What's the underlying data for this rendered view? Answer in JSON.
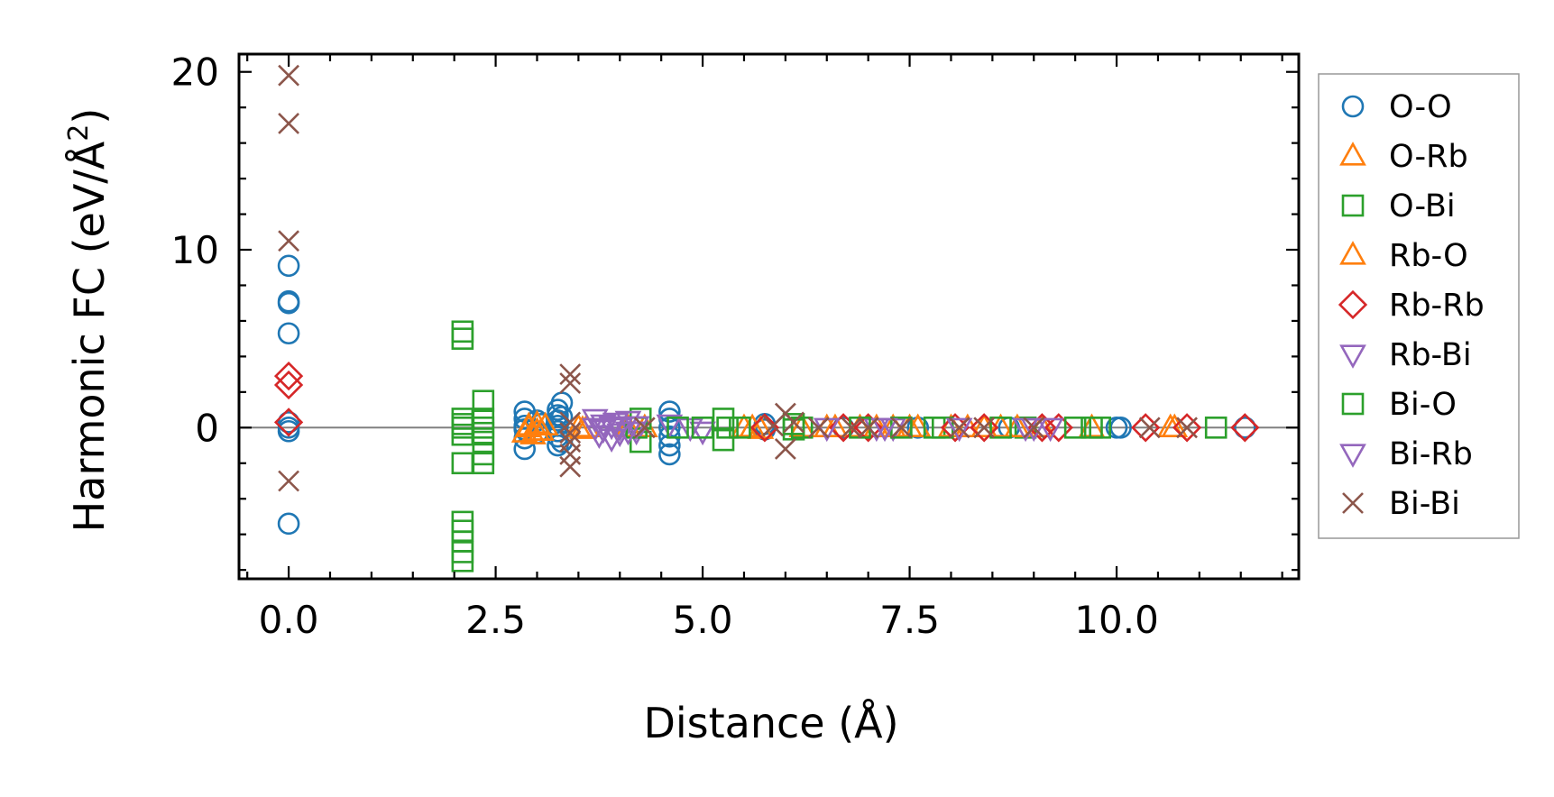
{
  "chart_data": {
    "type": "scatter",
    "title": "",
    "xlabel": "Distance (Å)",
    "ylabel_prefix": "Harmonic FC (eV/Å",
    "ylabel_sup": "2",
    "ylabel_suffix": ")",
    "xlim": [
      -0.6,
      12.2
    ],
    "ylim": [
      -8.5,
      21.0
    ],
    "xticks": [
      {
        "value": 0.0,
        "label": "0.0"
      },
      {
        "value": 2.5,
        "label": "2.5"
      },
      {
        "value": 5.0,
        "label": "5.0"
      },
      {
        "value": 7.5,
        "label": "7.5"
      },
      {
        "value": 10.0,
        "label": "10.0"
      }
    ],
    "yticks": [
      {
        "value": 0,
        "label": "0"
      },
      {
        "value": 10,
        "label": "10"
      },
      {
        "value": 20,
        "label": "20"
      }
    ],
    "x_minor_step": 0.5,
    "y_minor_step": 2,
    "zero_line": true,
    "grid": false,
    "legend_position": "right",
    "series": [
      {
        "name": "O-O",
        "marker": "circle",
        "color": "#1f77b4",
        "points": [
          [
            0,
            9.1
          ],
          [
            0,
            7.1
          ],
          [
            0,
            7.0
          ],
          [
            0,
            5.3
          ],
          [
            0,
            0.3
          ],
          [
            0,
            0.0
          ],
          [
            0,
            -0.2
          ],
          [
            0,
            -5.4
          ],
          [
            2.85,
            0.9
          ],
          [
            2.85,
            0.5
          ],
          [
            2.85,
            0.1
          ],
          [
            2.85,
            -0.1
          ],
          [
            2.85,
            -0.6
          ],
          [
            2.85,
            -1.2
          ],
          [
            3.0,
            0.4
          ],
          [
            3.0,
            -0.3
          ],
          [
            3.05,
            0.2
          ],
          [
            3.25,
            1.0
          ],
          [
            3.25,
            0.7
          ],
          [
            3.25,
            0.4
          ],
          [
            3.25,
            0.1
          ],
          [
            3.25,
            -0.2
          ],
          [
            3.25,
            -0.5
          ],
          [
            3.25,
            -1.0
          ],
          [
            3.3,
            1.4
          ],
          [
            3.3,
            0.6
          ],
          [
            3.3,
            -0.8
          ],
          [
            4.6,
            0.9
          ],
          [
            4.6,
            0.5
          ],
          [
            4.6,
            0.0
          ],
          [
            4.6,
            -0.5
          ],
          [
            4.6,
            -1.0
          ],
          [
            4.6,
            -1.5
          ],
          [
            5.75,
            0.2
          ],
          [
            5.75,
            -0.1
          ],
          [
            6.7,
            0.0
          ],
          [
            7.6,
            0.0
          ],
          [
            8.7,
            0.0
          ],
          [
            10.0,
            0.0
          ],
          [
            10.05,
            0.0
          ],
          [
            11.55,
            0.0
          ]
        ]
      },
      {
        "name": "O-Rb",
        "marker": "triangle-up",
        "color": "#ff7f0e",
        "points": [
          [
            2.85,
            -0.3
          ],
          [
            2.9,
            0.0
          ],
          [
            2.95,
            -0.4
          ],
          [
            3.0,
            0.2
          ],
          [
            3.05,
            -0.2
          ],
          [
            3.1,
            0.1
          ],
          [
            3.5,
            0.0
          ],
          [
            3.55,
            -0.1
          ],
          [
            4.3,
            0.0
          ],
          [
            5.5,
            0.0
          ],
          [
            5.7,
            -0.1
          ],
          [
            6.2,
            0.0
          ],
          [
            6.5,
            0.0
          ],
          [
            6.9,
            0.0
          ],
          [
            7.3,
            0.0
          ],
          [
            7.6,
            0.0
          ],
          [
            8.2,
            0.0
          ],
          [
            8.6,
            0.0
          ],
          [
            9.1,
            0.0
          ],
          [
            9.7,
            0.0
          ],
          [
            10.65,
            0.0
          ]
        ]
      },
      {
        "name": "O-Bi",
        "marker": "square",
        "color": "#2ca02c",
        "points": [
          [
            2.1,
            5.4
          ],
          [
            2.1,
            5.0
          ],
          [
            2.1,
            0.5
          ],
          [
            2.1,
            0.0
          ],
          [
            2.1,
            -0.4
          ],
          [
            2.1,
            -2.0
          ],
          [
            2.1,
            -5.3
          ],
          [
            2.1,
            -5.8
          ],
          [
            2.1,
            -6.4
          ],
          [
            2.1,
            -7.0
          ],
          [
            2.1,
            -7.5
          ],
          [
            2.35,
            1.5
          ],
          [
            2.35,
            0.5
          ],
          [
            2.35,
            -0.3
          ],
          [
            2.35,
            -0.8
          ],
          [
            2.35,
            -1.5
          ],
          [
            2.35,
            -2.0
          ],
          [
            4.25,
            0.5
          ],
          [
            4.25,
            -0.8
          ],
          [
            5.25,
            0.5
          ],
          [
            5.25,
            -0.7
          ],
          [
            5.3,
            0.0
          ],
          [
            6.1,
            0.2
          ],
          [
            6.1,
            -0.1
          ],
          [
            7.8,
            0.0
          ],
          [
            8.9,
            0.0
          ],
          [
            9.7,
            0.0
          ],
          [
            11.2,
            0.0
          ]
        ]
      },
      {
        "name": "Rb-O",
        "marker": "triangle-up",
        "color": "#ff7f0e",
        "points": [
          [
            2.9,
            0.1
          ],
          [
            3.0,
            -0.2
          ],
          [
            3.6,
            0.0
          ],
          [
            4.1,
            0.0
          ],
          [
            5.6,
            0.0
          ],
          [
            6.6,
            0.0
          ],
          [
            7.1,
            0.0
          ],
          [
            7.5,
            0.0
          ],
          [
            8.0,
            0.0
          ],
          [
            8.4,
            0.0
          ],
          [
            8.8,
            0.0
          ],
          [
            10.7,
            0.0
          ]
        ]
      },
      {
        "name": "Rb-Rb",
        "marker": "diamond",
        "color": "#d62728",
        "points": [
          [
            0,
            2.9
          ],
          [
            0,
            2.4
          ],
          [
            0,
            0.3
          ],
          [
            5.75,
            0.0
          ],
          [
            6.7,
            0.0
          ],
          [
            7.0,
            0.0
          ],
          [
            8.05,
            0.0
          ],
          [
            8.4,
            0.0
          ],
          [
            9.1,
            0.0
          ],
          [
            9.3,
            0.0
          ],
          [
            10.35,
            0.0
          ],
          [
            10.85,
            0.0
          ],
          [
            11.55,
            0.0
          ]
        ]
      },
      {
        "name": "Rb-Bi",
        "marker": "triangle-down",
        "color": "#9467bd",
        "points": [
          [
            3.7,
            0.5
          ],
          [
            3.7,
            0.0
          ],
          [
            3.75,
            -0.4
          ],
          [
            3.8,
            0.2
          ],
          [
            3.9,
            -0.6
          ],
          [
            3.95,
            0.3
          ],
          [
            4.0,
            -0.3
          ],
          [
            4.1,
            0.4
          ],
          [
            4.2,
            -0.2
          ],
          [
            4.6,
            0.2
          ],
          [
            4.85,
            0.0
          ],
          [
            5.0,
            -0.2
          ],
          [
            7.1,
            0.0
          ],
          [
            7.3,
            0.0
          ],
          [
            8.9,
            0.0
          ],
          [
            9.0,
            0.0
          ]
        ]
      },
      {
        "name": "Bi-O",
        "marker": "square",
        "color": "#2ca02c",
        "points": [
          [
            2.1,
            0.2
          ],
          [
            2.35,
            0.0
          ],
          [
            4.2,
            0.0
          ],
          [
            4.7,
            0.0
          ],
          [
            5.0,
            0.0
          ],
          [
            5.45,
            0.0
          ],
          [
            6.2,
            0.0
          ],
          [
            6.9,
            0.0
          ],
          [
            7.4,
            0.0
          ],
          [
            7.9,
            0.0
          ],
          [
            8.6,
            0.0
          ],
          [
            9.5,
            0.0
          ],
          [
            9.8,
            0.0
          ]
        ]
      },
      {
        "name": "Bi-Rb",
        "marker": "triangle-down",
        "color": "#9467bd",
        "points": [
          [
            3.8,
            -0.1
          ],
          [
            3.9,
            0.1
          ],
          [
            4.0,
            0.0
          ],
          [
            4.1,
            -0.2
          ],
          [
            4.2,
            0.1
          ],
          [
            6.5,
            0.0
          ],
          [
            7.2,
            0.0
          ],
          [
            8.1,
            0.0
          ],
          [
            9.2,
            0.0
          ]
        ]
      },
      {
        "name": "Bi-Bi",
        "marker": "x",
        "color": "#8c564b",
        "points": [
          [
            0,
            19.8
          ],
          [
            0,
            17.1
          ],
          [
            0,
            10.5
          ],
          [
            0,
            -3.0
          ],
          [
            3.4,
            3.0
          ],
          [
            3.4,
            2.5
          ],
          [
            3.4,
            0.3
          ],
          [
            3.4,
            -0.3
          ],
          [
            3.4,
            -0.8
          ],
          [
            3.4,
            -1.5
          ],
          [
            3.4,
            -2.2
          ],
          [
            4.3,
            0.0
          ],
          [
            5.85,
            0.1
          ],
          [
            6.0,
            0.8
          ],
          [
            6.0,
            -1.2
          ],
          [
            6.1,
            0.3
          ],
          [
            6.4,
            0.0
          ],
          [
            6.8,
            0.0
          ],
          [
            7.0,
            0.0
          ],
          [
            7.4,
            0.0
          ],
          [
            8.1,
            0.0
          ],
          [
            8.4,
            0.0
          ],
          [
            9.0,
            0.0
          ],
          [
            10.4,
            0.0
          ],
          [
            10.85,
            0.0
          ]
        ]
      }
    ]
  }
}
